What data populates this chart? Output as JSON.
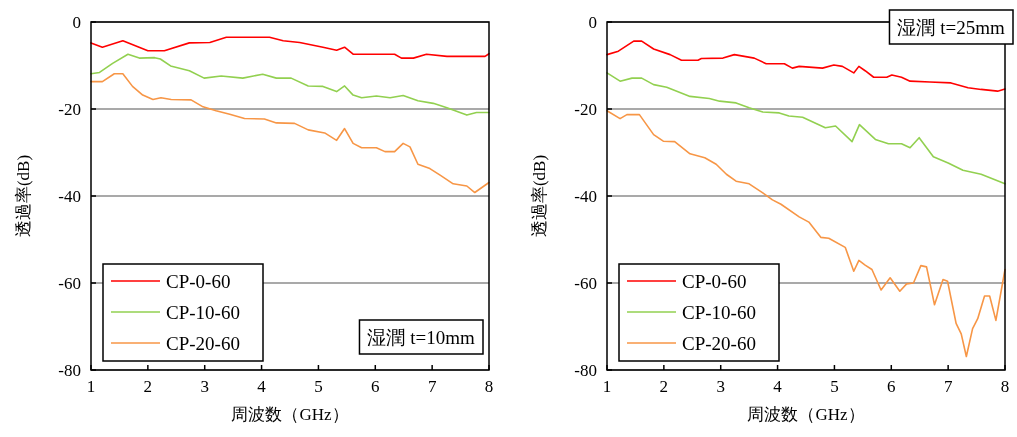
{
  "chart_data": [
    {
      "type": "line",
      "xlabel": "周波数（GHz）",
      "ylabel": "透過率(dB)",
      "xlim": [
        1,
        8
      ],
      "xticks": [
        1,
        2,
        3,
        4,
        5,
        6,
        7,
        8
      ],
      "ylim": [
        -80,
        0
      ],
      "yticks": [
        -80,
        -60,
        -40,
        -20,
        0
      ],
      "grid": "y",
      "legend": "bottom left",
      "marker": "none",
      "line_style": "solid",
      "annotations": [
        "湿潤 t=10mm"
      ],
      "series": [
        {
          "name": "CP-0-60",
          "color": "#ff0000",
          "x": [
            1,
            1.2,
            1.56,
            2.0,
            2.29,
            2.73,
            3.09,
            3.38,
            4.14,
            4.38,
            4.67,
            5.08,
            5.32,
            5.46,
            5.61,
            6.34,
            6.46,
            6.67,
            6.9,
            7.26,
            7.93,
            8
          ],
          "values": [
            -4.8,
            -5.8,
            -4.3,
            -6.6,
            -6.6,
            -4.8,
            -4.7,
            -3.5,
            -3.5,
            -4.3,
            -4.7,
            -5.8,
            -6.5,
            -5.8,
            -7.4,
            -7.4,
            -8.3,
            -8.3,
            -7.4,
            -7.9,
            -7.9,
            -7.3
          ]
        },
        {
          "name": "CP-10-60",
          "color": "#92d050",
          "x": [
            1,
            1.15,
            1.38,
            1.65,
            1.85,
            2.12,
            2.22,
            2.4,
            2.73,
            2.99,
            3.29,
            3.67,
            4.02,
            4.26,
            4.52,
            4.82,
            5.08,
            5.32,
            5.46,
            5.61,
            5.76,
            6.02,
            6.26,
            6.49,
            6.75,
            7.02,
            7.26,
            7.61,
            7.78,
            8
          ],
          "values": [
            -11.9,
            -11.6,
            -9.5,
            -7.4,
            -8.3,
            -8.2,
            -8.5,
            -10.1,
            -11.2,
            -12.9,
            -12.4,
            -12.9,
            -12,
            -12.9,
            -12.9,
            -14.7,
            -14.8,
            -16,
            -14.7,
            -16.8,
            -17.4,
            -17,
            -17.4,
            -16.9,
            -18.1,
            -18.7,
            -19.7,
            -21.4,
            -20.8,
            -20.8
          ]
        },
        {
          "name": "CP-20-60",
          "color": "#f79646",
          "x": [
            1,
            1.2,
            1.41,
            1.56,
            1.73,
            1.91,
            2.09,
            2.23,
            2.41,
            2.76,
            2.97,
            3.2,
            3.44,
            3.7,
            4.05,
            4.26,
            4.58,
            4.82,
            5.11,
            5.32,
            5.46,
            5.61,
            5.76,
            6.02,
            6.17,
            6.34,
            6.49,
            6.61,
            6.75,
            6.96,
            7.14,
            7.37,
            7.61,
            7.75,
            8
          ],
          "values": [
            -13.7,
            -13.7,
            -11.9,
            -11.9,
            -14.8,
            -16.8,
            -17.8,
            -17.4,
            -17.8,
            -17.9,
            -19.5,
            -20.4,
            -21.2,
            -22.2,
            -22.3,
            -23.2,
            -23.3,
            -24.8,
            -25.5,
            -27.2,
            -24.5,
            -27.9,
            -28.9,
            -28.9,
            -29.8,
            -29.8,
            -27.9,
            -28.7,
            -32.7,
            -33.7,
            -35.2,
            -37.2,
            -37.7,
            -39.2,
            -36.9
          ]
        }
      ]
    },
    {
      "type": "line",
      "xlabel": "周波数（GHz）",
      "ylabel": "透過率(dB)",
      "xlim": [
        1,
        8
      ],
      "xticks": [
        1,
        2,
        3,
        4,
        5,
        6,
        7,
        8
      ],
      "ylim": [
        -80,
        0
      ],
      "yticks": [
        -80,
        -60,
        -40,
        -20,
        0
      ],
      "grid": "y",
      "legend": "bottom left",
      "marker": "none",
      "line_style": "solid",
      "annotations": [
        "湿潤  t=25mm"
      ],
      "series": [
        {
          "name": "CP-0-60",
          "color": "#ff0000",
          "x": [
            1,
            1.2,
            1.47,
            1.61,
            1.82,
            2.11,
            2.31,
            2.6,
            2.66,
            3.04,
            3.24,
            3.59,
            3.8,
            4.12,
            4.26,
            4.38,
            4.79,
            4.99,
            5.14,
            5.34,
            5.43,
            5.54,
            5.69,
            5.92,
            6.01,
            6.18,
            6.33,
            6.68,
            7.05,
            7.35,
            7.58,
            7.87,
            8
          ],
          "values": [
            -7.5,
            -6.7,
            -4.4,
            -4.4,
            -6.2,
            -7.5,
            -8.8,
            -8.8,
            -8.4,
            -8.3,
            -7.5,
            -8.3,
            -9.6,
            -9.6,
            -10.6,
            -10.2,
            -10.6,
            -9.9,
            -10.2,
            -11.7,
            -10.2,
            -11.2,
            -12.7,
            -12.7,
            -12.2,
            -12.7,
            -13.6,
            -13.8,
            -14,
            -15.1,
            -15.5,
            -15.9,
            -15.4
          ]
        },
        {
          "name": "CP-10-60",
          "color": "#92d050",
          "x": [
            1,
            1.23,
            1.44,
            1.61,
            1.82,
            2.05,
            2.46,
            2.8,
            2.98,
            3.27,
            3.5,
            3.74,
            4.03,
            4.2,
            4.44,
            4.84,
            5.02,
            5.31,
            5.44,
            5.72,
            5.95,
            6.18,
            6.33,
            6.49,
            6.74,
            7,
            7.26,
            7.58,
            8
          ],
          "values": [
            -11.7,
            -13.6,
            -12.9,
            -12.9,
            -14.4,
            -15,
            -17.1,
            -17.6,
            -18.2,
            -18.6,
            -19.7,
            -20.7,
            -20.9,
            -21.6,
            -21.9,
            -24.3,
            -23.9,
            -27.5,
            -23.6,
            -27,
            -28,
            -28,
            -28.9,
            -26.6,
            -31,
            -32.4,
            -34.1,
            -35,
            -37.2
          ]
        },
        {
          "name": "CP-20-60",
          "color": "#f79646",
          "x": [
            1,
            1.23,
            1.35,
            1.57,
            1.82,
            1.99,
            2.19,
            2.46,
            2.72,
            2.92,
            3.1,
            3.27,
            3.5,
            3.74,
            3.91,
            4.06,
            4.38,
            4.55,
            4.76,
            4.9,
            5.19,
            5.34,
            5.43,
            5.54,
            5.66,
            5.82,
            5.98,
            6.15,
            6.27,
            6.39,
            6.52,
            6.62,
            6.76,
            6.91,
            6.99,
            7.14,
            7.23,
            7.32,
            7.43,
            7.52,
            7.64,
            7.73,
            7.84,
            8
          ],
          "values": [
            -20.4,
            -22.2,
            -21.3,
            -21.3,
            -25.9,
            -27.4,
            -27.5,
            -30.3,
            -31.2,
            -32.7,
            -35,
            -36.6,
            -37.2,
            -39.3,
            -40.9,
            -41.9,
            -44.8,
            -46,
            -49.5,
            -49.7,
            -51.8,
            -57.3,
            -54.8,
            -55.9,
            -56.9,
            -61.6,
            -58.8,
            -61.9,
            -60.2,
            -60,
            -56,
            -56.3,
            -65,
            -59.2,
            -59.6,
            -69.3,
            -71.7,
            -76.9,
            -70.5,
            -68.2,
            -63,
            -63,
            -68.6,
            -56.9
          ]
        }
      ]
    }
  ]
}
